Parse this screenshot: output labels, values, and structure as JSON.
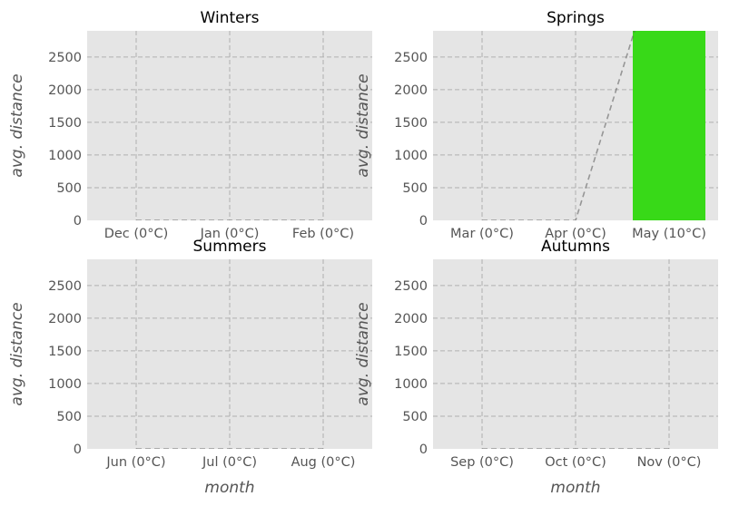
{
  "chart_data": [
    {
      "type": "bar",
      "title": "Winters",
      "categories": [
        "Dec (0°C)",
        "Jan (0°C)",
        "Feb (0°C)"
      ],
      "values": [
        0,
        0,
        0
      ],
      "trend": [
        0,
        0,
        0
      ],
      "xlabel": "",
      "ylabel": "avg. distance",
      "ylim": [
        0,
        2900
      ],
      "yticks": [
        "0",
        "500",
        "1000",
        "1500",
        "2000",
        "2500"
      ],
      "grid": true
    },
    {
      "type": "bar",
      "title": "Springs",
      "categories": [
        "Mar (0°C)",
        "Apr (0°C)",
        "May (10°C)"
      ],
      "values": [
        0,
        0,
        2900
      ],
      "trend": [
        0,
        0,
        4600
      ],
      "xlabel": "",
      "ylabel": "avg. distance",
      "ylim": [
        0,
        2900
      ],
      "yticks": [
        "0",
        "500",
        "1000",
        "1500",
        "2000",
        "2500"
      ],
      "grid": true
    },
    {
      "type": "bar",
      "title": "Summers",
      "categories": [
        "Jun (0°C)",
        "Jul (0°C)",
        "Aug (0°C)"
      ],
      "values": [
        0,
        0,
        0
      ],
      "trend": [
        0,
        0,
        0
      ],
      "xlabel": "month",
      "ylabel": "avg. distance",
      "ylim": [
        0,
        2900
      ],
      "yticks": [
        "0",
        "500",
        "1000",
        "1500",
        "2000",
        "2500"
      ],
      "grid": true
    },
    {
      "type": "bar",
      "title": "Autumns",
      "categories": [
        "Sep (0°C)",
        "Oct (0°C)",
        "Nov (0°C)"
      ],
      "values": [
        0,
        0,
        0
      ],
      "trend": [
        0,
        0,
        0
      ],
      "xlabel": "month",
      "ylabel": "avg. distance",
      "ylim": [
        0,
        2900
      ],
      "yticks": [
        "0",
        "500",
        "1000",
        "1500",
        "2000",
        "2500"
      ],
      "grid": true
    }
  ],
  "colors": {
    "bar": "#38d918",
    "panel_bg": "#e5e5e5",
    "trend": "#555555"
  }
}
